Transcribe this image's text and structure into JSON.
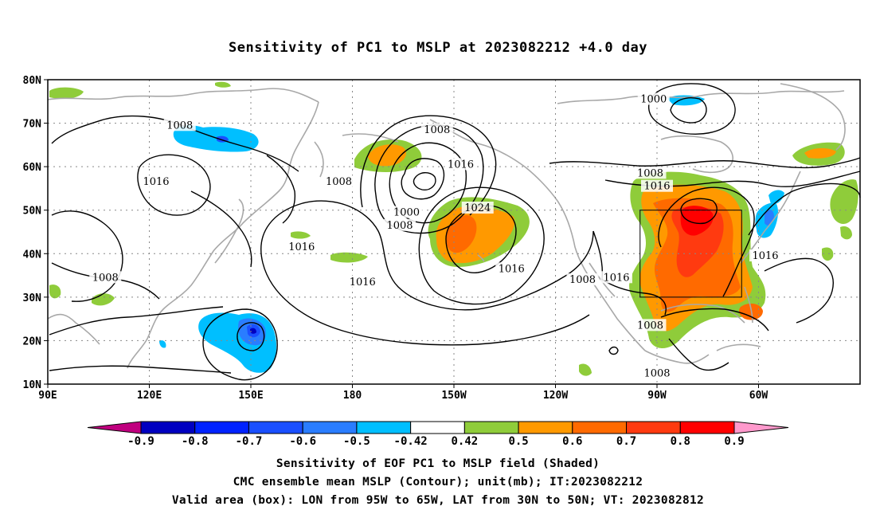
{
  "title": "Sensitivity of PC1 to MSLP at 2023082212 +4.0 day",
  "lat_labels": [
    "80N",
    "70N",
    "60N",
    "50N",
    "40N",
    "30N",
    "20N",
    "10N"
  ],
  "lon_labels": [
    "90E",
    "120E",
    "150E",
    "180",
    "150W",
    "120W",
    "90W",
    "60W"
  ],
  "contour_labels": [
    {
      "text": "1000",
      "lon": 269,
      "lat": 75.5
    },
    {
      "text": "1008",
      "lon": 129,
      "lat": 69.5
    },
    {
      "text": "1008",
      "lon": 205,
      "lat": 68.5
    },
    {
      "text": "1016",
      "lon": 212,
      "lat": 60.5
    },
    {
      "text": "1008",
      "lon": 176,
      "lat": 56.5
    },
    {
      "text": "1016",
      "lon": 122,
      "lat": 56.5
    },
    {
      "text": "1008",
      "lon": 268,
      "lat": 58.5
    },
    {
      "text": "1016",
      "lon": 270,
      "lat": 55.5
    },
    {
      "text": "1024",
      "lon": 217,
      "lat": 50.5
    },
    {
      "text": "1000",
      "lon": 196,
      "lat": 49.5
    },
    {
      "text": "1008",
      "lon": 194,
      "lat": 46.5
    },
    {
      "text": "1016",
      "lon": 165,
      "lat": 41.5
    },
    {
      "text": "1016",
      "lon": 227,
      "lat": 36.5
    },
    {
      "text": "1016",
      "lon": 183,
      "lat": 33.5
    },
    {
      "text": "1008",
      "lon": 107,
      "lat": 34.5
    },
    {
      "text": "1008",
      "lon": 248,
      "lat": 34
    },
    {
      "text": "1016",
      "lon": 258,
      "lat": 34.5
    },
    {
      "text": "1008",
      "lon": 268,
      "lat": 23.5
    },
    {
      "text": "1016",
      "lon": 302,
      "lat": 39.5
    },
    {
      "text": "1008",
      "lon": 270,
      "lat": 12.5
    }
  ],
  "valid_box": {
    "lon_min": 265,
    "lon_max": 295,
    "lat_min": 30,
    "lat_max": 50
  },
  "colorbar": {
    "labels": [
      "-0.9",
      "-0.8",
      "-0.7",
      "-0.6",
      "-0.5",
      "-0.42",
      "0.42",
      "0.5",
      "0.6",
      "0.7",
      "0.8",
      "0.9"
    ],
    "colors": [
      "#0000c0",
      "#0022ff",
      "#1a4fff",
      "#2a7dff",
      "#00bfff",
      "#ffffff",
      "#8fcc3a",
      "#ff9900",
      "#ff6a00",
      "#ff3a10",
      "#ff0000"
    ],
    "low_color": "#c0007f",
    "high_color": "#ff99cc"
  },
  "captions": [
    "Sensitivity of EOF PC1 to MSLP field (Shaded)",
    "CMC ensemble mean MSLP (Contour); unit(mb); IT:2023082212",
    "Valid area (box): LON from 95W to 65W, LAT from 30N to 50N; VT: 2023082812"
  ]
}
